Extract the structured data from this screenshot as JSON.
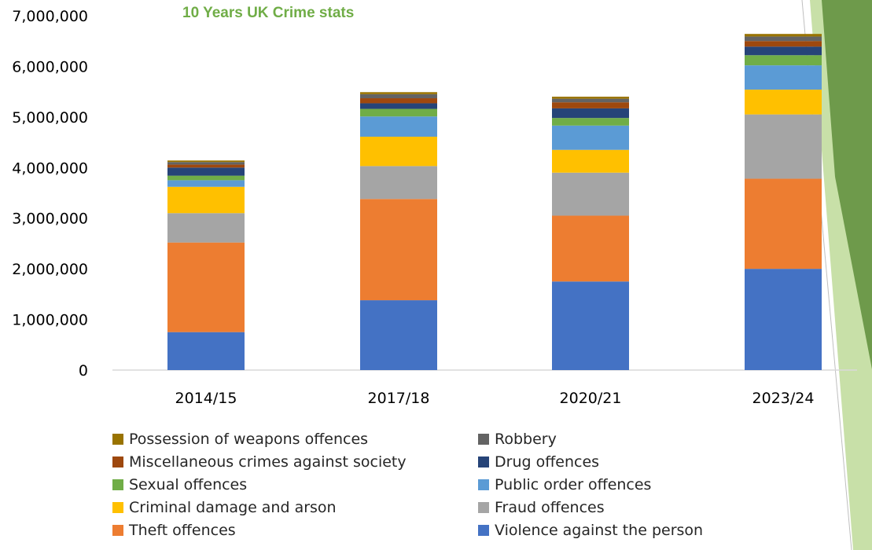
{
  "chart_data": {
    "type": "bar",
    "stacked": true,
    "title": "10 Years UK Crime stats",
    "xlabel": "",
    "ylabel": "",
    "ylim": [
      0,
      7000000
    ],
    "yticks": [
      0,
      1000000,
      2000000,
      3000000,
      4000000,
      5000000,
      6000000,
      7000000
    ],
    "ytick_labels": [
      "0",
      "1,000,000",
      "2,000,000",
      "3,000,000",
      "4,000,000",
      "5,000,000",
      "6,000,000",
      "7,000,000"
    ],
    "grid": false,
    "legend_position": "bottom",
    "categories": [
      "2014/15",
      "2017/18",
      "2020/21",
      "2023/24"
    ],
    "series": [
      {
        "name": "Violence against the person",
        "color": "#4472C4",
        "values": [
          750000,
          1380000,
          1750000,
          2000000
        ]
      },
      {
        "name": "Theft offences",
        "color": "#ED7D31",
        "values": [
          1770000,
          2000000,
          1300000,
          1780000
        ]
      },
      {
        "name": "Fraud offences",
        "color": "#A5A5A5",
        "values": [
          580000,
          650000,
          850000,
          1270000
        ]
      },
      {
        "name": "Criminal damage and arson",
        "color": "#FFC000",
        "values": [
          520000,
          580000,
          450000,
          490000
        ]
      },
      {
        "name": "Public order offences",
        "color": "#5B9BD5",
        "values": [
          130000,
          400000,
          480000,
          480000
        ]
      },
      {
        "name": "Sexual offences",
        "color": "#70AD47",
        "values": [
          90000,
          150000,
          150000,
          200000
        ]
      },
      {
        "name": "Drug offences",
        "color": "#264478",
        "values": [
          160000,
          110000,
          190000,
          170000
        ]
      },
      {
        "name": "Miscellaneous crimes against society",
        "color": "#9E480E",
        "values": [
          60000,
          100000,
          120000,
          110000
        ]
      },
      {
        "name": "Robbery",
        "color": "#636363",
        "values": [
          50000,
          80000,
          70000,
          90000
        ]
      },
      {
        "name": "Possession of weapons offences",
        "color": "#997300",
        "values": [
          30000,
          40000,
          40000,
          50000
        ]
      }
    ],
    "title_color": "#70AD47",
    "tick_label_color": "#000000",
    "axis_color": "#D9D9D9"
  },
  "legend": {
    "order": [
      9,
      8,
      7,
      6,
      5,
      4,
      3,
      2,
      1,
      0
    ]
  },
  "decor": {
    "accent_dark": "#6E9A4B",
    "accent_light": "#C8E0A8"
  }
}
